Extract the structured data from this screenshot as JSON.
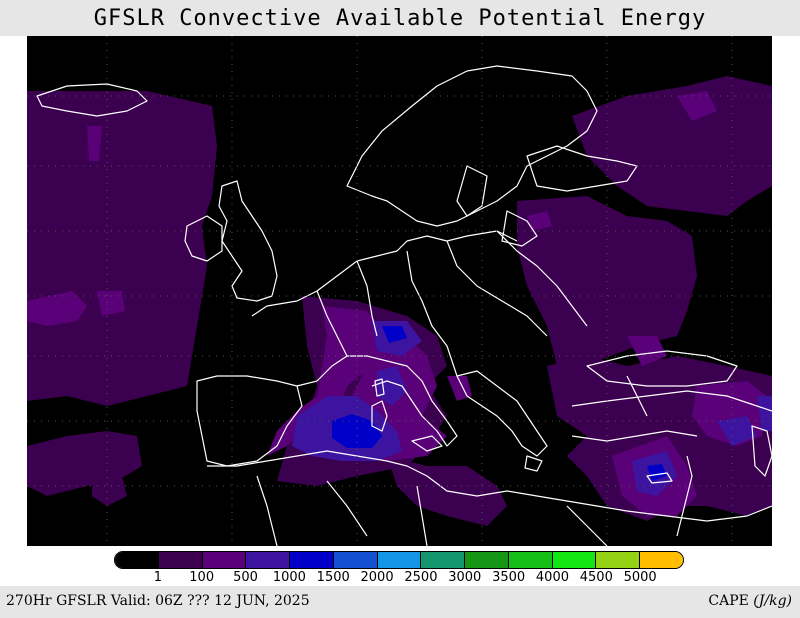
{
  "title": "GFSLR Convective Available Potential Energy",
  "footer": {
    "valid": "270Hr GFSLR Valid: 06Z ??? 12 JUN, 2025",
    "field_label": "CAPE",
    "units": "(J/kg)"
  },
  "legend": {
    "colors": [
      "#000000",
      "#3c0050",
      "#5a0078",
      "#3c14a0",
      "#0000c8",
      "#1450d2",
      "#1496e6",
      "#14966e",
      "#149614",
      "#14be14",
      "#14e614",
      "#96d214",
      "#ffbe00"
    ],
    "ticks": [
      "1",
      "100",
      "500",
      "1000",
      "1500",
      "2000",
      "2500",
      "3000",
      "3500",
      "4000",
      "4500",
      "5000"
    ]
  },
  "map": {
    "region": "Europe / North Africa",
    "background": "#000000",
    "coast_color": "#ffffff",
    "fill_colors": {
      "low": "#3c0050",
      "mid": "#5a0078",
      "high": "#3c14a0",
      "peak": "#0000c8"
    }
  }
}
